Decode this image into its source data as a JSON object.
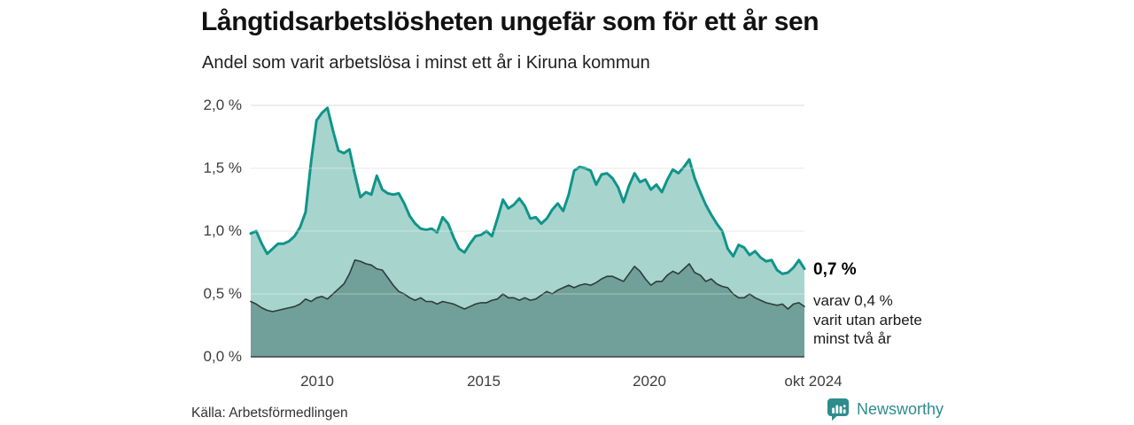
{
  "header": {
    "title": "Långtidsarbetslösheten ungefär som för ett år sen",
    "subtitle": "Andel som varit arbetslösa i minst ett år i Kiruna kommun"
  },
  "chart_data": {
    "type": "area",
    "title": "Långtidsarbetslösheten ungefär som för ett år sen",
    "subtitle": "Andel som varit arbetslösa i minst ett år i Kiruna kommun",
    "unit": "%",
    "x_range": [
      2008.0,
      2024.75
    ],
    "x_note": "monthly data jan 2008 – okt 2024, sampled every 2 months",
    "ylim": [
      0,
      2.0
    ],
    "grid": true,
    "legend_position": "none (direct annotation at line end)",
    "y_ticks": [
      "2,0 %",
      "1,5 %",
      "1,0 %",
      "0,5 %",
      "0,0 %"
    ],
    "x_ticks": [
      {
        "label": "2010",
        "year": 2010.0
      },
      {
        "label": "2015",
        "year": 2015.0
      },
      {
        "label": "2020",
        "year": 2020.0
      },
      {
        "label": "okt 2024",
        "year": 2024.78
      }
    ],
    "series": [
      {
        "name": "Andel arbetslösa minst ett år",
        "line_color": "#10948a",
        "fill_color": "#a7d5ce",
        "line_width": 3,
        "latest_label": "0,7 %",
        "values": [
          0.98,
          1.0,
          0.9,
          0.82,
          0.86,
          0.9,
          0.9,
          0.92,
          0.96,
          1.03,
          1.15,
          1.55,
          1.88,
          1.94,
          1.98,
          1.8,
          1.64,
          1.62,
          1.65,
          1.45,
          1.27,
          1.31,
          1.29,
          1.44,
          1.33,
          1.3,
          1.29,
          1.3,
          1.22,
          1.12,
          1.06,
          1.02,
          1.01,
          1.02,
          0.99,
          1.11,
          1.06,
          0.95,
          0.86,
          0.83,
          0.9,
          0.96,
          0.97,
          1.0,
          0.96,
          1.1,
          1.25,
          1.18,
          1.21,
          1.26,
          1.2,
          1.1,
          1.11,
          1.06,
          1.1,
          1.17,
          1.22,
          1.16,
          1.29,
          1.48,
          1.51,
          1.5,
          1.48,
          1.37,
          1.45,
          1.46,
          1.42,
          1.35,
          1.23,
          1.36,
          1.46,
          1.39,
          1.41,
          1.33,
          1.37,
          1.31,
          1.41,
          1.49,
          1.46,
          1.51,
          1.57,
          1.42,
          1.31,
          1.21,
          1.13,
          1.06,
          1.0,
          0.86,
          0.8,
          0.89,
          0.87,
          0.81,
          0.84,
          0.79,
          0.76,
          0.77,
          0.69,
          0.66,
          0.67,
          0.71,
          0.77,
          0.7
        ]
      },
      {
        "name": "Andel arbetslösa minst två år",
        "line_color": "#2e3d3b",
        "fill_color": "#719f9a",
        "line_width": 1.6,
        "latest_label": "0,4 %",
        "values": [
          0.44,
          0.42,
          0.39,
          0.37,
          0.36,
          0.37,
          0.38,
          0.39,
          0.4,
          0.42,
          0.46,
          0.44,
          0.47,
          0.48,
          0.46,
          0.5,
          0.54,
          0.58,
          0.66,
          0.77,
          0.76,
          0.74,
          0.73,
          0.7,
          0.69,
          0.63,
          0.57,
          0.52,
          0.5,
          0.47,
          0.45,
          0.47,
          0.44,
          0.44,
          0.42,
          0.44,
          0.43,
          0.42,
          0.4,
          0.38,
          0.4,
          0.42,
          0.43,
          0.43,
          0.45,
          0.46,
          0.5,
          0.47,
          0.47,
          0.45,
          0.47,
          0.45,
          0.46,
          0.49,
          0.52,
          0.5,
          0.53,
          0.55,
          0.57,
          0.55,
          0.57,
          0.58,
          0.57,
          0.59,
          0.62,
          0.64,
          0.64,
          0.62,
          0.6,
          0.66,
          0.72,
          0.68,
          0.62,
          0.57,
          0.6,
          0.6,
          0.65,
          0.68,
          0.66,
          0.7,
          0.74,
          0.67,
          0.65,
          0.6,
          0.62,
          0.58,
          0.56,
          0.55,
          0.5,
          0.47,
          0.47,
          0.5,
          0.47,
          0.45,
          0.43,
          0.42,
          0.41,
          0.42,
          0.38,
          0.42,
          0.43,
          0.4
        ]
      }
    ],
    "colors": {
      "grid": "#dcdcdc",
      "axis": "#404040",
      "accent_teal": "#10948a",
      "light_fill": "#a7d5ce",
      "dark_fill": "#719f9a",
      "dark_line": "#2e3d3b"
    }
  },
  "annotation": {
    "latest_value": "0,7 %",
    "detail_line1": "varav 0,4 %",
    "detail_line2": "varit utan arbete",
    "detail_line3": "minst två år"
  },
  "footer": {
    "source": "Källa: Arbetsförmedlingen",
    "brand_name": "Newsworthy",
    "brand_color": "#2e8c8c",
    "brand_icon": "bar-chart-speech-bubble"
  }
}
